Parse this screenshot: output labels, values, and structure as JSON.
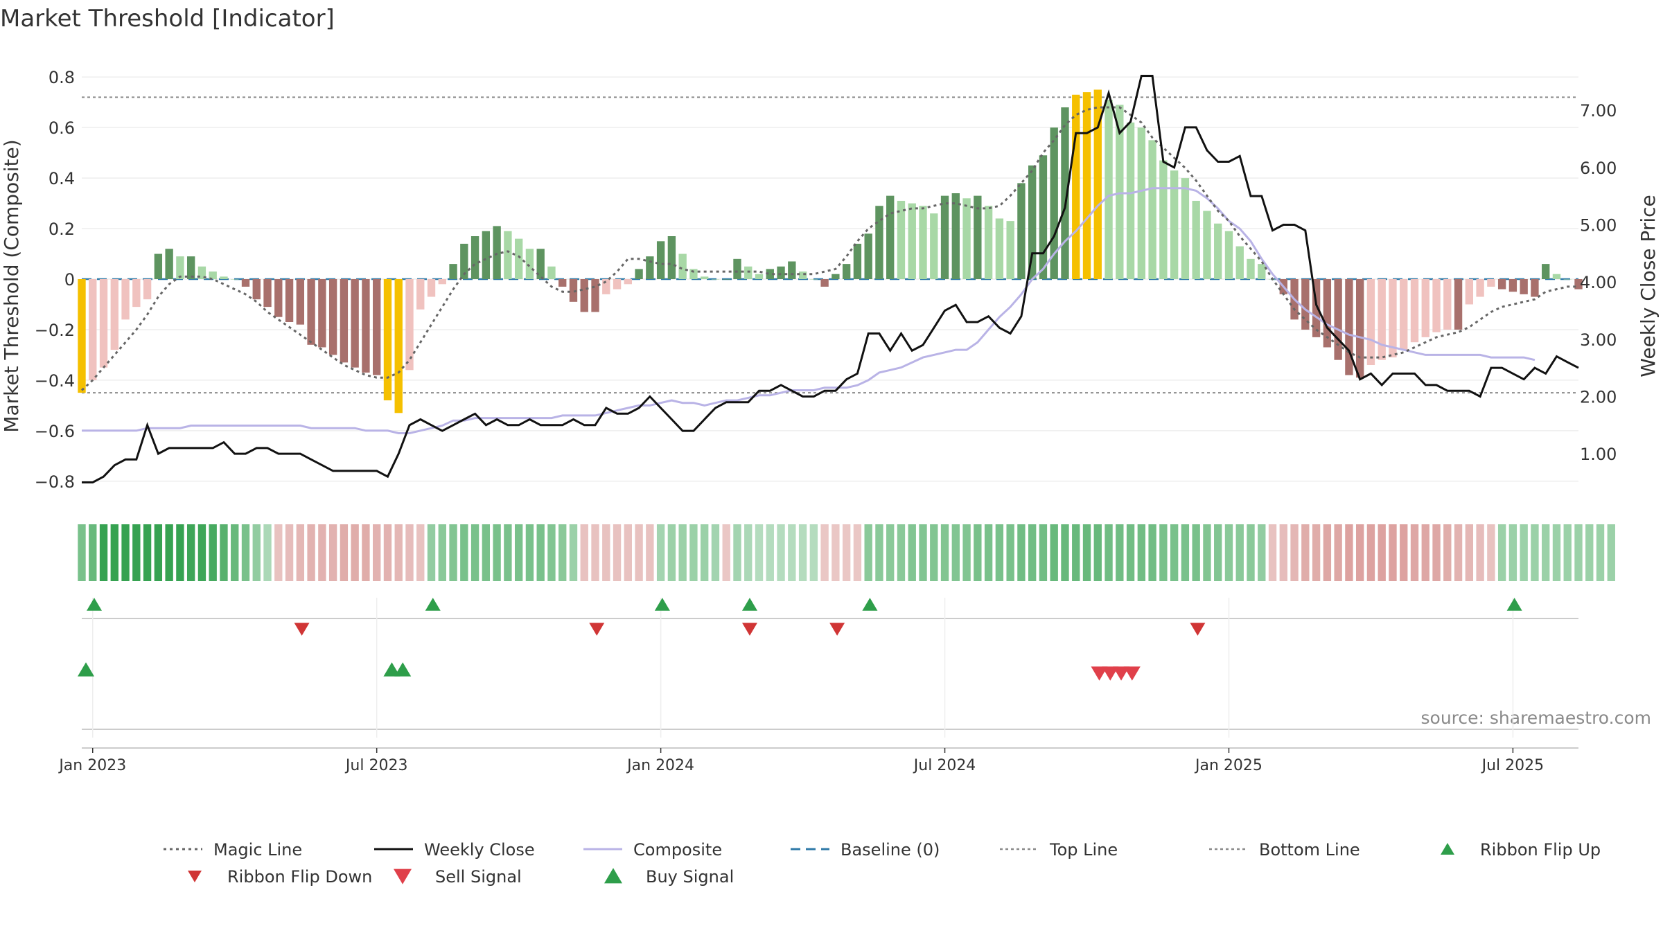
{
  "chart_data": {
    "type": "bar",
    "title": "Market Threshold [Indicator]",
    "source": "source: sharemaestro.com",
    "ylabel_left": "Market Threshold (Composite)",
    "ylabel_right": "Weekly Close Price",
    "ylim_left": [
      -0.85,
      0.85
    ],
    "ylim_right": [
      0.3,
      7.8
    ],
    "y_ticks_left": [
      "0.8",
      "0.6",
      "0.4",
      "0.2",
      "0",
      "−0.2",
      "−0.4",
      "−0.6",
      "−0.8"
    ],
    "y_ticks_right": [
      "7.00",
      "6.00",
      "5.00",
      "4.00",
      "3.00",
      "2.00",
      "1.00"
    ],
    "x_ticks": [
      "Jan 2023",
      "Jul 2023",
      "Jan 2024",
      "Jul 2024",
      "Jan 2025",
      "Jul 2025"
    ],
    "x_tick_weeks": [
      1,
      27,
      53,
      79,
      105,
      131
    ],
    "top_line": 0.72,
    "bottom_line": -0.45,
    "baseline": 0,
    "grid": true,
    "legend_position": "bottom",
    "colors": {
      "magic_line": "#666666",
      "weekly_close": "#111111",
      "composite": "#b9b3e6",
      "baseline": "#2f7aa8",
      "ribbon_flip_up": "#2e9e4a",
      "ribbon_flip_down": "#d03535",
      "sell_signal": "#e0404a",
      "buy_signal": "#2e9e4a",
      "bar_extreme": "#f5c000"
    },
    "series": [
      {
        "name": "Composite (bars)",
        "values": [
          -0.45,
          -0.4,
          -0.35,
          -0.28,
          -0.16,
          -0.11,
          -0.08,
          0.1,
          0.12,
          0.09,
          0.09,
          0.05,
          0.03,
          0.01,
          0.0,
          -0.03,
          -0.08,
          -0.11,
          -0.15,
          -0.17,
          -0.18,
          -0.26,
          -0.27,
          -0.3,
          -0.33,
          -0.35,
          -0.37,
          -0.38,
          -0.48,
          -0.53,
          -0.36,
          -0.12,
          -0.07,
          -0.02,
          0.06,
          0.14,
          0.17,
          0.19,
          0.21,
          0.19,
          0.16,
          0.12,
          0.12,
          0.05,
          -0.03,
          -0.09,
          -0.13,
          -0.13,
          -0.06,
          -0.04,
          -0.02,
          0.04,
          0.09,
          0.15,
          0.17,
          0.1,
          0.04,
          0.01,
          0.0,
          0.0,
          0.08,
          0.05,
          0.02,
          0.04,
          0.05,
          0.07,
          0.03,
          0.0,
          -0.03,
          0.02,
          0.06,
          0.14,
          0.18,
          0.29,
          0.33,
          0.31,
          0.3,
          0.29,
          0.26,
          0.33,
          0.34,
          0.32,
          0.33,
          0.29,
          0.24,
          0.23,
          0.38,
          0.45,
          0.49,
          0.6,
          0.68,
          0.73,
          0.74,
          0.75,
          0.71,
          0.69,
          0.62,
          0.6,
          0.55,
          0.47,
          0.43,
          0.4,
          0.31,
          0.27,
          0.22,
          0.19,
          0.13,
          0.08,
          0.06,
          0.0,
          -0.06,
          -0.16,
          -0.2,
          -0.23,
          -0.27,
          -0.32,
          -0.38,
          -0.39,
          -0.34,
          -0.32,
          -0.31,
          -0.28,
          -0.25,
          -0.23,
          -0.21,
          -0.2,
          -0.2,
          -0.1,
          -0.07,
          -0.03,
          -0.04,
          -0.05,
          -0.06,
          -0.07,
          0.06,
          0.02,
          0.0,
          -0.04
        ]
      },
      {
        "name": "Magic Line",
        "values": [
          -0.44,
          -0.4,
          -0.35,
          -0.3,
          -0.25,
          -0.2,
          -0.14,
          -0.07,
          -0.02,
          0.01,
          0.01,
          0.01,
          0.0,
          -0.02,
          -0.04,
          -0.06,
          -0.09,
          -0.13,
          -0.16,
          -0.19,
          -0.22,
          -0.25,
          -0.28,
          -0.31,
          -0.34,
          -0.36,
          -0.38,
          -0.39,
          -0.39,
          -0.37,
          -0.32,
          -0.25,
          -0.18,
          -0.11,
          -0.04,
          0.02,
          0.06,
          0.08,
          0.1,
          0.11,
          0.09,
          0.05,
          0.01,
          -0.03,
          -0.05,
          -0.05,
          -0.04,
          -0.03,
          -0.01,
          0.03,
          0.08,
          0.08,
          0.07,
          0.06,
          0.06,
          0.04,
          0.03,
          0.03,
          0.03,
          0.03,
          0.03,
          0.03,
          0.03,
          0.02,
          0.02,
          0.02,
          0.02,
          0.02,
          0.03,
          0.04,
          0.09,
          0.15,
          0.2,
          0.23,
          0.26,
          0.27,
          0.28,
          0.28,
          0.29,
          0.3,
          0.3,
          0.29,
          0.28,
          0.28,
          0.29,
          0.33,
          0.38,
          0.43,
          0.5,
          0.55,
          0.61,
          0.65,
          0.67,
          0.68,
          0.68,
          0.68,
          0.65,
          0.62,
          0.56,
          0.52,
          0.48,
          0.44,
          0.39,
          0.33,
          0.27,
          0.23,
          0.17,
          0.12,
          0.07,
          0.0,
          -0.06,
          -0.12,
          -0.16,
          -0.2,
          -0.23,
          -0.26,
          -0.29,
          -0.31,
          -0.31,
          -0.31,
          -0.3,
          -0.29,
          -0.27,
          -0.25,
          -0.23,
          -0.22,
          -0.21,
          -0.19,
          -0.16,
          -0.13,
          -0.11,
          -0.1,
          -0.09,
          -0.08,
          -0.05,
          -0.04,
          -0.03,
          -0.03
        ]
      },
      {
        "name": "Composite",
        "values": [
          -0.6,
          -0.6,
          -0.6,
          -0.6,
          -0.6,
          -0.6,
          -0.59,
          -0.59,
          -0.59,
          -0.59,
          -0.58,
          -0.58,
          -0.58,
          -0.58,
          -0.58,
          -0.58,
          -0.58,
          -0.58,
          -0.58,
          -0.58,
          -0.58,
          -0.59,
          -0.59,
          -0.59,
          -0.59,
          -0.59,
          -0.6,
          -0.6,
          -0.6,
          -0.61,
          -0.61,
          -0.6,
          -0.59,
          -0.58,
          -0.56,
          -0.56,
          -0.55,
          -0.55,
          -0.55,
          -0.55,
          -0.55,
          -0.55,
          -0.55,
          -0.55,
          -0.54,
          -0.54,
          -0.54,
          -0.54,
          -0.53,
          -0.52,
          -0.51,
          -0.5,
          -0.5,
          -0.49,
          -0.48,
          -0.49,
          -0.49,
          -0.5,
          -0.49,
          -0.48,
          -0.48,
          -0.47,
          -0.46,
          -0.46,
          -0.45,
          -0.44,
          -0.44,
          -0.44,
          -0.43,
          -0.43,
          -0.43,
          -0.42,
          -0.4,
          -0.37,
          -0.36,
          -0.35,
          -0.33,
          -0.31,
          -0.3,
          -0.29,
          -0.28,
          -0.28,
          -0.25,
          -0.2,
          -0.15,
          -0.11,
          -0.06,
          0.0,
          0.04,
          0.1,
          0.15,
          0.19,
          0.24,
          0.29,
          0.33,
          0.34,
          0.34,
          0.35,
          0.36,
          0.36,
          0.36,
          0.36,
          0.35,
          0.32,
          0.28,
          0.23,
          0.2,
          0.15,
          0.08,
          0.02,
          -0.03,
          -0.08,
          -0.12,
          -0.15,
          -0.18,
          -0.2,
          -0.22,
          -0.23,
          -0.24,
          -0.26,
          -0.27,
          -0.28,
          -0.29,
          -0.3,
          -0.3,
          -0.3,
          -0.3,
          -0.3,
          -0.3,
          -0.31,
          -0.31,
          -0.31,
          -0.31,
          -0.32
        ]
      },
      {
        "name": "Weekly Close",
        "values": [
          0.5,
          0.5,
          0.6,
          0.8,
          0.9,
          0.9,
          1.5,
          1.0,
          1.1,
          1.1,
          1.1,
          1.1,
          1.1,
          1.2,
          1.0,
          1.0,
          1.1,
          1.1,
          1.0,
          1.0,
          1.0,
          0.9,
          0.8,
          0.7,
          0.7,
          0.7,
          0.7,
          0.7,
          0.6,
          1.0,
          1.5,
          1.6,
          1.5,
          1.4,
          1.5,
          1.6,
          1.7,
          1.5,
          1.6,
          1.5,
          1.5,
          1.6,
          1.5,
          1.5,
          1.5,
          1.6,
          1.5,
          1.5,
          1.8,
          1.7,
          1.7,
          1.8,
          2.0,
          1.8,
          1.6,
          1.4,
          1.4,
          1.6,
          1.8,
          1.9,
          1.9,
          1.9,
          2.1,
          2.1,
          2.2,
          2.1,
          2.0,
          2.0,
          2.1,
          2.1,
          2.3,
          2.4,
          3.1,
          3.1,
          2.8,
          3.1,
          2.8,
          2.9,
          3.2,
          3.5,
          3.6,
          3.3,
          3.3,
          3.4,
          3.2,
          3.1,
          3.4,
          4.5,
          4.5,
          4.8,
          5.3,
          6.6,
          6.6,
          6.7,
          7.3,
          6.6,
          6.8,
          7.6,
          7.6,
          6.1,
          6.0,
          6.7,
          6.7,
          6.3,
          6.1,
          6.1,
          6.2,
          5.5,
          5.5,
          4.9,
          5.0,
          5.0,
          4.9,
          3.6,
          3.2,
          3.0,
          2.8,
          2.3,
          2.4,
          2.2,
          2.4,
          2.4,
          2.4,
          2.2,
          2.2,
          2.1,
          2.1,
          2.1,
          2.0,
          2.5,
          2.5,
          2.4,
          2.3,
          2.5,
          2.4,
          2.7,
          2.6,
          2.5
        ]
      }
    ],
    "ribbon": [
      0.55,
      0.65,
      0.95,
      0.95,
      0.95,
      0.95,
      0.95,
      0.95,
      0.95,
      0.95,
      0.9,
      0.9,
      0.85,
      0.75,
      0.65,
      0.55,
      0.4,
      0.25,
      -0.25,
      -0.3,
      -0.35,
      -0.4,
      -0.4,
      -0.4,
      -0.45,
      -0.45,
      -0.45,
      -0.4,
      -0.4,
      -0.35,
      -0.3,
      -0.25,
      0.4,
      0.45,
      0.5,
      0.55,
      0.55,
      0.55,
      0.55,
      0.55,
      0.55,
      0.55,
      0.55,
      0.5,
      0.45,
      0.35,
      -0.25,
      -0.25,
      -0.25,
      -0.25,
      -0.25,
      -0.25,
      -0.25,
      0.3,
      0.35,
      0.35,
      0.35,
      0.35,
      0.3,
      -0.2,
      0.3,
      0.25,
      0.2,
      0.2,
      0.2,
      0.2,
      0.2,
      0.2,
      -0.2,
      -0.2,
      -0.2,
      -0.2,
      0.45,
      0.45,
      0.45,
      0.45,
      0.5,
      0.5,
      0.5,
      0.5,
      0.5,
      0.5,
      0.55,
      0.55,
      0.55,
      0.55,
      0.6,
      0.6,
      0.6,
      0.65,
      0.65,
      0.65,
      0.65,
      0.65,
      0.6,
      0.6,
      0.6,
      0.6,
      0.6,
      0.55,
      0.55,
      0.55,
      0.55,
      0.5,
      0.5,
      0.45,
      0.45,
      0.45,
      0.4,
      -0.25,
      -0.3,
      -0.35,
      -0.45,
      -0.45,
      -0.5,
      -0.5,
      -0.55,
      -0.55,
      -0.55,
      -0.55,
      -0.55,
      -0.55,
      -0.5,
      -0.5,
      -0.5,
      -0.45,
      -0.4,
      -0.35,
      -0.3,
      -0.25,
      0.35,
      0.35,
      0.35,
      0.35,
      0.35,
      0.35,
      0.35,
      0.35,
      0.35,
      0.35,
      0.35
    ],
    "ribbon_flip_up_weeks": [
      0,
      31,
      52,
      60,
      71,
      130
    ],
    "ribbon_flip_down_weeks": [
      19,
      46,
      60,
      68,
      101
    ],
    "buy_signal_weeks": [
      0,
      28,
      29
    ],
    "sell_signal_weeks": [
      92,
      93,
      94,
      95
    ]
  },
  "legend": [
    {
      "label": "Magic Line",
      "icon": "dotted-line"
    },
    {
      "label": "Weekly Close",
      "icon": "solid-line"
    },
    {
      "label": "Composite",
      "icon": "solid-line"
    },
    {
      "label": "Baseline (0)",
      "icon": "dashed-line"
    },
    {
      "label": "Top Line",
      "icon": "dotted-line"
    },
    {
      "label": "Bottom Line",
      "icon": "dotted-line"
    },
    {
      "label": "Ribbon Flip Up",
      "icon": "triangle-up"
    },
    {
      "label": "Ribbon Flip Down",
      "icon": "triangle-down"
    },
    {
      "label": "Sell Signal",
      "icon": "triangle-down"
    },
    {
      "label": "Buy Signal",
      "icon": "triangle-up"
    }
  ]
}
